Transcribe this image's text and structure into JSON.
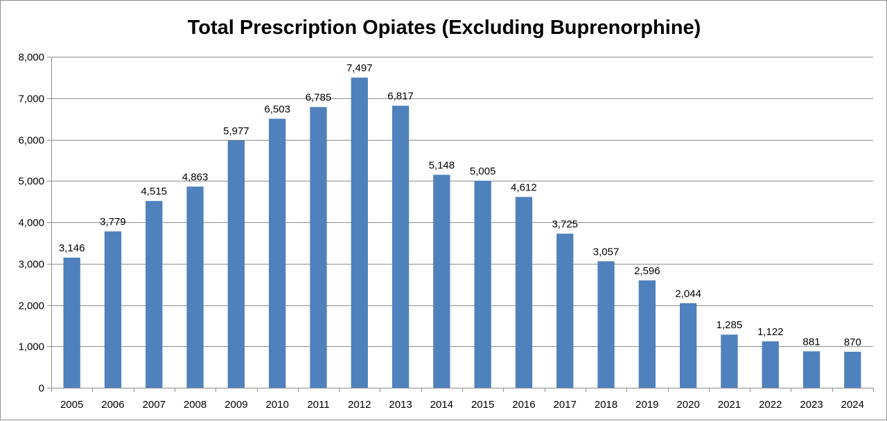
{
  "chart_data": {
    "type": "bar",
    "title": "Total Prescription Opiates (Excluding Buprenorphine)",
    "xlabel": "",
    "ylabel": "",
    "categories": [
      "2005",
      "2006",
      "2007",
      "2008",
      "2009",
      "2010",
      "2011",
      "2012",
      "2013",
      "2014",
      "2015",
      "2016",
      "2017",
      "2018",
      "2019",
      "2020",
      "2021",
      "2022",
      "2023",
      "2024"
    ],
    "values": [
      3146,
      3779,
      4515,
      4863,
      5977,
      6503,
      6785,
      7497,
      6817,
      5148,
      5005,
      4612,
      3725,
      3057,
      2596,
      2044,
      1285,
      1122,
      881,
      870
    ],
    "data_labels": [
      "3,146",
      "3,779",
      "4,515",
      "4,863",
      "5,977",
      "6,503",
      "6,785",
      "7,497",
      "6,817",
      "5,148",
      "5,005",
      "4,612",
      "3,725",
      "3,057",
      "2,596",
      "2,044",
      "1,285",
      "1,122",
      "881",
      "870"
    ],
    "ylim": [
      0,
      8000
    ],
    "yticks": [
      0,
      1000,
      2000,
      3000,
      4000,
      5000,
      6000,
      7000,
      8000
    ],
    "ytick_labels": [
      "0",
      "1,000",
      "2,000",
      "3,000",
      "4,000",
      "5,000",
      "6,000",
      "7,000",
      "8,000"
    ],
    "grid": true,
    "legend": false,
    "colors": {
      "bar": "#4f81bd",
      "grid": "#8c8c8c",
      "axis": "#8c8c8c"
    }
  }
}
